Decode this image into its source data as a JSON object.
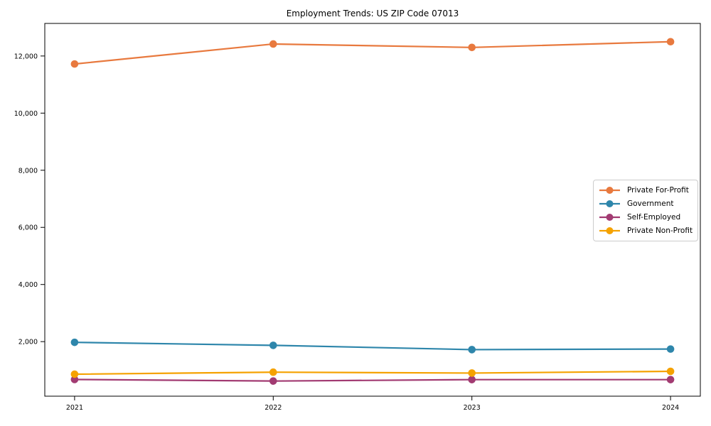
{
  "chart_data": {
    "type": "line",
    "title": "Employment Trends: US ZIP Code 07013",
    "categories": [
      "2021",
      "2022",
      "2023",
      "2024"
    ],
    "series": [
      {
        "name": "Private For-Profit",
        "color": "#E8793E",
        "values": [
          11720,
          12420,
          12300,
          12500
        ]
      },
      {
        "name": "Government",
        "color": "#2E86AB",
        "values": [
          1975,
          1870,
          1720,
          1740
        ]
      },
      {
        "name": "Self-Employed",
        "color": "#A23B72",
        "values": [
          675,
          620,
          670,
          670
        ]
      },
      {
        "name": "Private Non-Profit",
        "color": "#F5A201",
        "values": [
          860,
          930,
          900,
          960
        ]
      }
    ],
    "yticks": [
      2000,
      4000,
      6000,
      8000,
      10000,
      12000
    ],
    "ytick_labels": [
      "2,000",
      "4,000",
      "6,000",
      "8,000",
      "10,000",
      "12,000"
    ],
    "ylim": [
      90,
      13140
    ],
    "x_margin_fraction": 0.05,
    "xlabel": "",
    "ylabel": "",
    "grid": false,
    "legend_position": "center-right",
    "axis_color": "#000000",
    "background_color": "#ffffff",
    "legend_border_color": "#cccccc"
  }
}
